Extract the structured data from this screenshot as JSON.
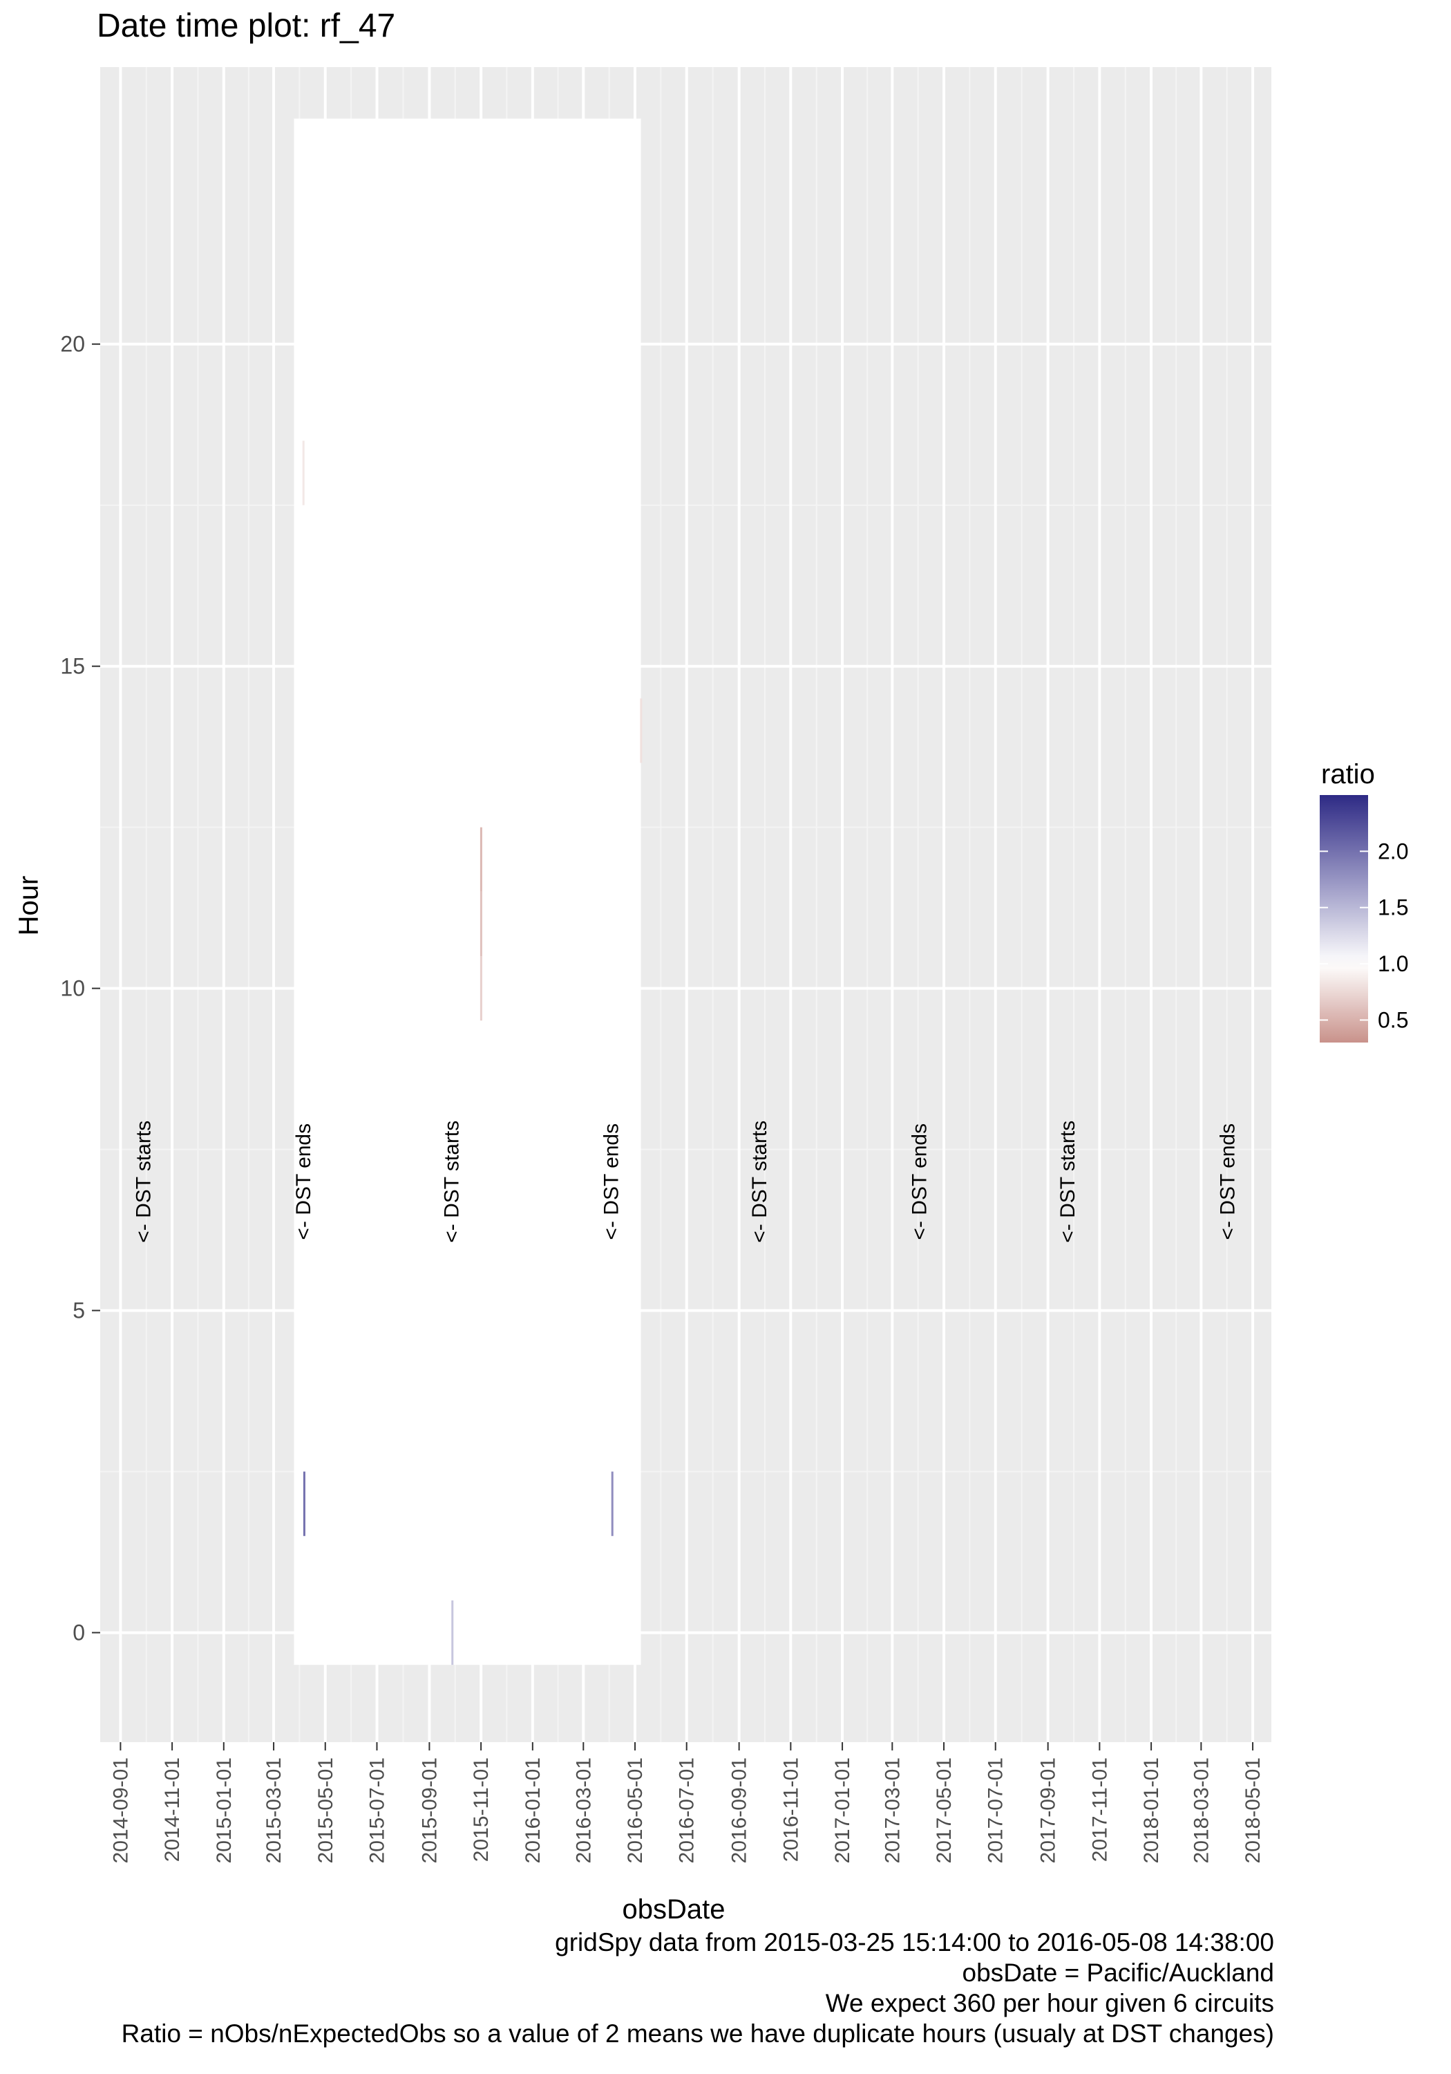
{
  "chart_data": {
    "type": "heatmap",
    "title": "Date time plot: rf_47",
    "xlabel": "obsDate",
    "ylabel": "Hour",
    "x_ticks": [
      "2014-09-01",
      "2014-11-01",
      "2015-01-01",
      "2015-03-01",
      "2015-05-01",
      "2015-07-01",
      "2015-09-01",
      "2015-11-01",
      "2016-01-01",
      "2016-03-01",
      "2016-05-01",
      "2016-07-01",
      "2016-09-01",
      "2016-11-01",
      "2017-01-01",
      "2017-03-01",
      "2017-05-01",
      "2017-07-01",
      "2017-09-01",
      "2017-11-01",
      "2018-01-01",
      "2018-03-01",
      "2018-05-01"
    ],
    "xlim": [
      "2014-08-08",
      "2018-05-23"
    ],
    "y_ticks": [
      0,
      5,
      10,
      15,
      20
    ],
    "ylim": [
      -1.7,
      24.3
    ],
    "grid": true,
    "data_range": {
      "from": "2015-03-25",
      "to": "2016-05-08",
      "hours": [
        0,
        23
      ],
      "base_ratio": 1.0
    },
    "cells": [
      {
        "date": "2015-10-31",
        "hour": 12,
        "ratio": 0.55
      },
      {
        "date": "2015-10-31",
        "hour": 10,
        "ratio": 0.7
      },
      {
        "date": "2015-10-31",
        "hour": 11,
        "ratio": 0.6
      },
      {
        "date": "2015-04-05",
        "hour": 2,
        "ratio": 2.0
      },
      {
        "date": "2016-04-03",
        "hour": 2,
        "ratio": 1.8
      },
      {
        "date": "2016-05-07",
        "hour": 14,
        "ratio": 0.8
      },
      {
        "date": "2015-04-04",
        "hour": 18,
        "ratio": 0.85
      },
      {
        "date": "2015-09-27",
        "hour": 0,
        "ratio": 1.4
      }
    ],
    "annotations": [
      {
        "date": "2014-09-28",
        "label": "<- DST starts"
      },
      {
        "date": "2015-04-05",
        "label": "<- DST ends"
      },
      {
        "date": "2015-09-27",
        "label": "<- DST starts"
      },
      {
        "date": "2016-04-03",
        "label": "<- DST ends"
      },
      {
        "date": "2016-09-25",
        "label": "<- DST starts"
      },
      {
        "date": "2017-04-02",
        "label": "<- DST ends"
      },
      {
        "date": "2017-09-24",
        "label": "<- DST starts"
      },
      {
        "date": "2018-04-01",
        "label": "<- DST ends"
      }
    ],
    "annotation_hour": 7,
    "legend": {
      "title": "ratio",
      "position": "right",
      "ticks": [
        2.0,
        1.5,
        1.0,
        0.5
      ],
      "tick_labels": [
        "2.0",
        "1.5",
        "1.0",
        "0.5"
      ],
      "range": [
        0.3,
        2.5
      ],
      "colors": {
        "low": "#c9928b",
        "mid": "#ffffff",
        "high": "#2e2a85"
      }
    },
    "caption": [
      "gridSpy data from 2015-03-25 15:14:00 to 2016-05-08 14:38:00",
      "obsDate = Pacific/Auckland",
      "We expect 360 per hour given 6 circuits",
      "Ratio = nObs/nExpectedObs so a value of 2 means we have duplicate hours (usualy at DST changes)"
    ]
  },
  "colors": {
    "panel_background": "#ebebeb",
    "grid_major": "#ffffff",
    "axis_text": "#4d4d4d",
    "tick": "#333333"
  }
}
